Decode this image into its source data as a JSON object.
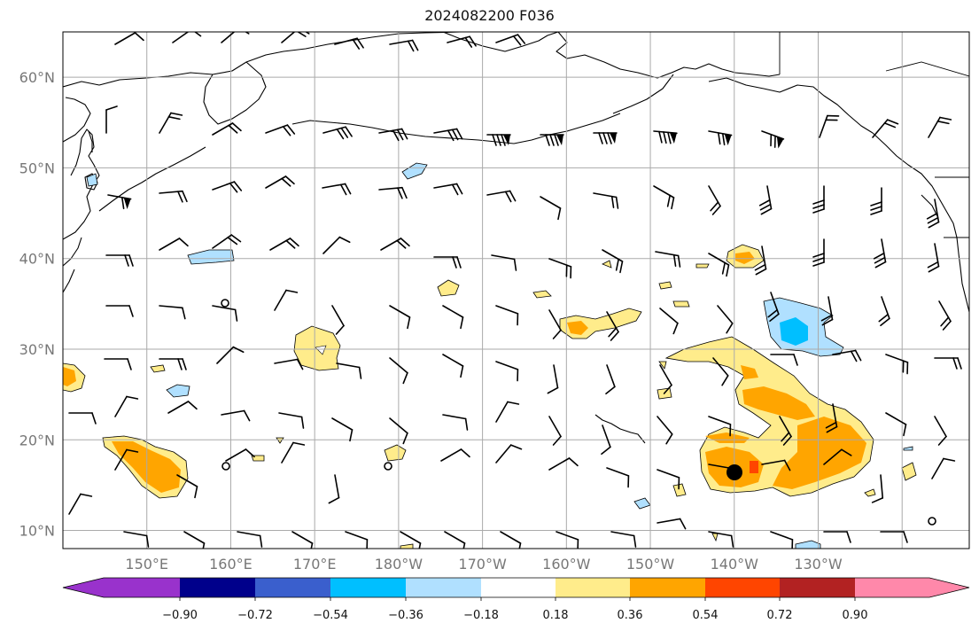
{
  "title": "2024082200 F036",
  "map": {
    "projection": "equirectangular",
    "lon_range": [
      140,
      -112
    ],
    "lat_range": [
      8,
      65
    ],
    "grid": true,
    "lat_ticks": [
      {
        "label": "10°N",
        "lat": 10
      },
      {
        "label": "20°N",
        "lat": 20
      },
      {
        "label": "30°N",
        "lat": 30
      },
      {
        "label": "40°N",
        "lat": 40
      },
      {
        "label": "50°N",
        "lat": 50
      },
      {
        "label": "60°N",
        "lat": 60
      }
    ],
    "lon_ticks": [
      {
        "label": "150°E",
        "lon": 150
      },
      {
        "label": "160°E",
        "lon": 160
      },
      {
        "label": "170°E",
        "lon": 170
      },
      {
        "label": "180°W",
        "lon": 180
      },
      {
        "label": "170°W",
        "lon": 190
      },
      {
        "label": "160°W",
        "lon": 200
      },
      {
        "label": "150°W",
        "lon": 210
      },
      {
        "label": "140°W",
        "lon": 220
      },
      {
        "label": "130°W",
        "lon": 230
      }
    ]
  },
  "colorbar": {
    "colors": [
      "#9932cc",
      "#00008b",
      "#3a5fcd",
      "#00bfff",
      "#b0e0ff",
      "#ffffff",
      "#ffec8b",
      "#ffa500",
      "#ff4500",
      "#b22222",
      "#ff88aa"
    ],
    "labels": [
      "−0.90",
      "−0.72",
      "−0.54",
      "−0.36",
      "−0.18",
      "0.18",
      "0.36",
      "0.54",
      "0.72",
      "0.90"
    ]
  },
  "colors": {
    "positive_light": "#ffec8b",
    "positive_mid": "#ffa500",
    "positive_high": "#ff4500",
    "negative_light": "#b0e0ff",
    "negative_mid": "#00bfff",
    "grid": "#aaaaaa",
    "coast": "#000000"
  }
}
